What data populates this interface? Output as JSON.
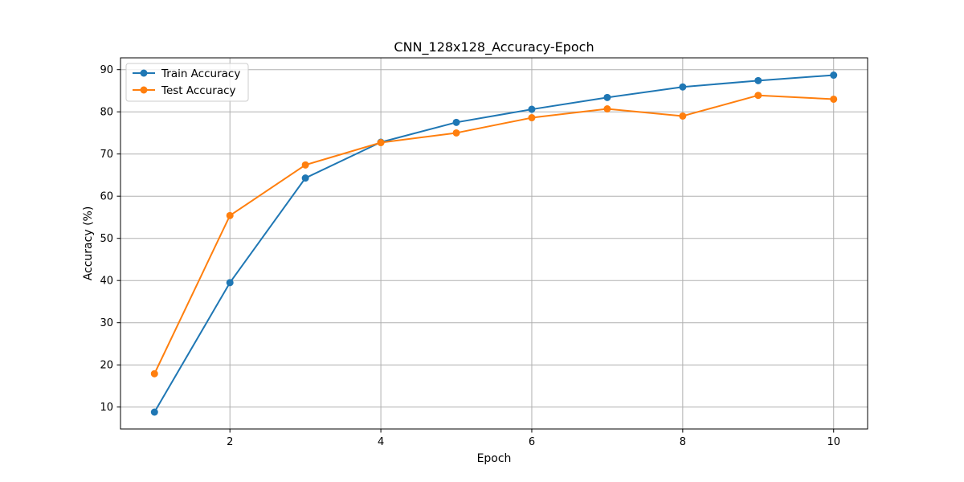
{
  "chart_data": {
    "type": "line",
    "title": "CNN_128x128_Accuracy-Epoch",
    "xlabel": "Epoch",
    "ylabel": "Accuracy (%)",
    "x": [
      1,
      2,
      3,
      4,
      5,
      6,
      7,
      8,
      9,
      10
    ],
    "xlim": [
      0.55,
      10.45
    ],
    "ylim": [
      4.8,
      92.8
    ],
    "xticks": [
      2,
      4,
      6,
      8,
      10
    ],
    "yticks": [
      10,
      20,
      30,
      40,
      50,
      60,
      70,
      80,
      90
    ],
    "grid": true,
    "legend_position": "upper-left",
    "series": [
      {
        "name": "Train Accuracy",
        "color": "#1f77b4",
        "marker": "circle",
        "values": [
          8.8,
          39.5,
          64.3,
          72.8,
          77.5,
          80.6,
          83.4,
          85.9,
          87.4,
          88.7
        ]
      },
      {
        "name": "Test Accuracy",
        "color": "#ff7f0e",
        "marker": "circle",
        "values": [
          17.9,
          55.4,
          67.4,
          72.7,
          75.0,
          78.6,
          80.7,
          79.0,
          83.9,
          83.0
        ]
      }
    ]
  }
}
